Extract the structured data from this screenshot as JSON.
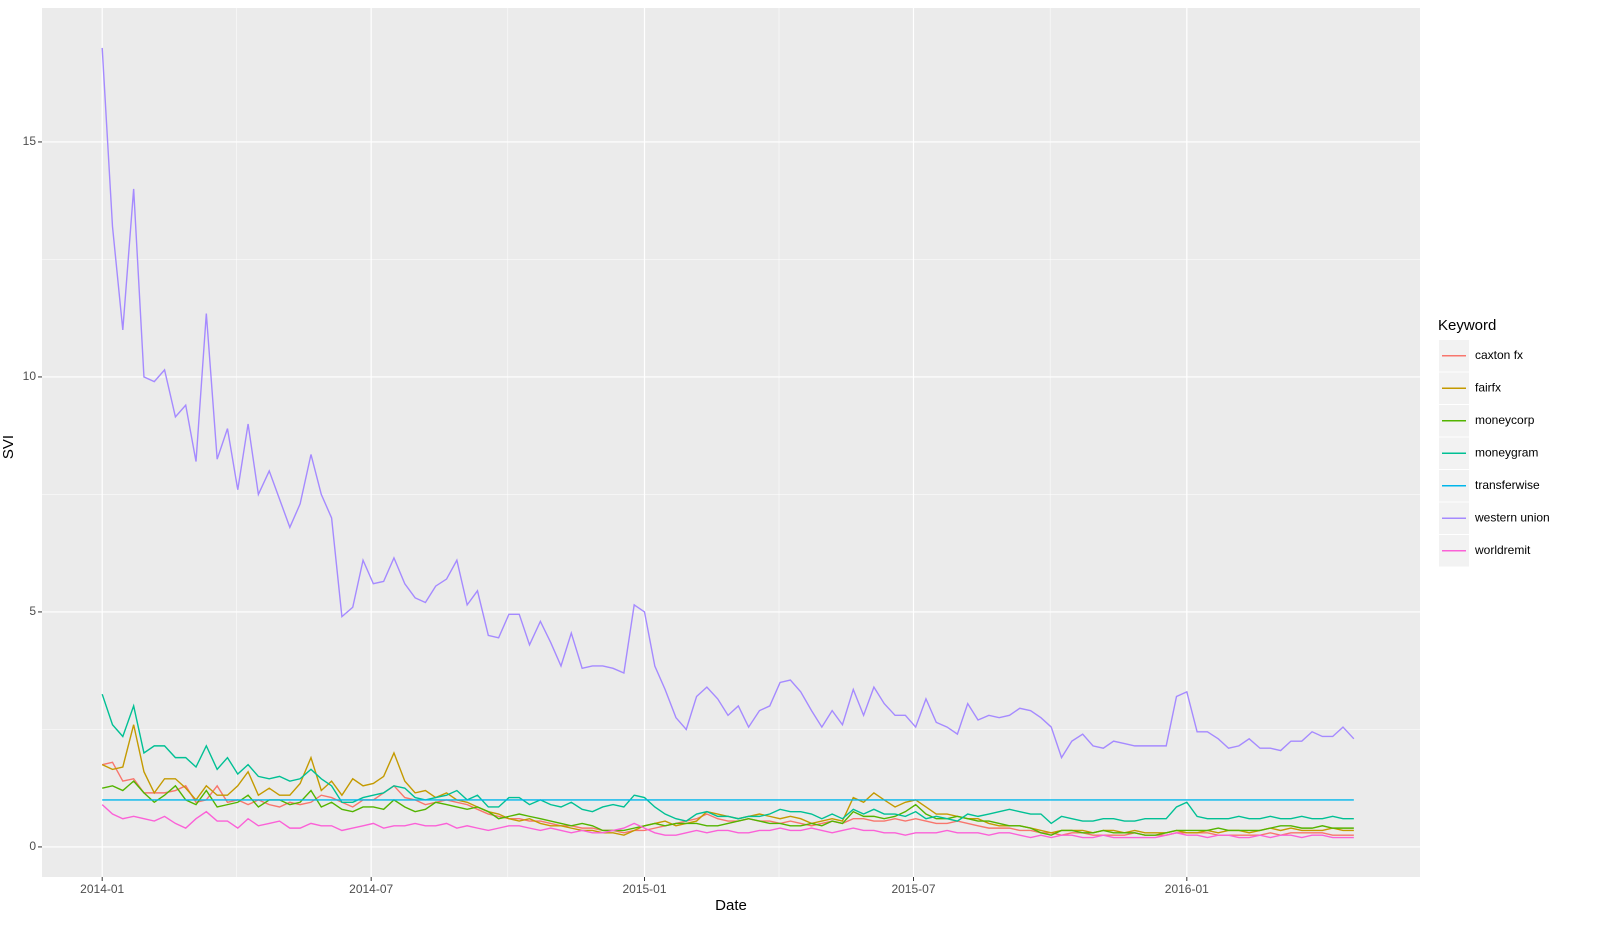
{
  "chart_data": {
    "type": "line",
    "x_label": "Date",
    "y_label": "SVI",
    "legend_title": "Keyword",
    "legend": "right",
    "grid": true,
    "xlim": [
      2013.889,
      2016.43
    ],
    "ylim": [
      -0.64,
      17.85
    ],
    "xticks": [
      {
        "value": 2014.0,
        "label": "2014-01"
      },
      {
        "value": 2014.496,
        "label": "2014-07"
      },
      {
        "value": 2015.0,
        "label": "2015-01"
      },
      {
        "value": 2015.496,
        "label": "2015-07"
      },
      {
        "value": 2016.0,
        "label": "2016-01"
      }
    ],
    "yticks": [
      0,
      5,
      10,
      15
    ],
    "x": [
      2014.0,
      2014.019,
      2014.038,
      2014.058,
      2014.077,
      2014.096,
      2014.115,
      2014.135,
      2014.154,
      2014.173,
      2014.192,
      2014.212,
      2014.231,
      2014.25,
      2014.269,
      2014.288,
      2014.308,
      2014.327,
      2014.346,
      2014.365,
      2014.385,
      2014.404,
      2014.423,
      2014.442,
      2014.462,
      2014.481,
      2014.5,
      2014.519,
      2014.538,
      2014.558,
      2014.577,
      2014.596,
      2014.615,
      2014.635,
      2014.654,
      2014.673,
      2014.692,
      2014.712,
      2014.731,
      2014.75,
      2014.769,
      2014.788,
      2014.808,
      2014.827,
      2014.846,
      2014.865,
      2014.885,
      2014.904,
      2014.923,
      2014.942,
      2014.962,
      2014.981,
      2015.0,
      2015.019,
      2015.038,
      2015.058,
      2015.077,
      2015.096,
      2015.115,
      2015.135,
      2015.154,
      2015.173,
      2015.192,
      2015.212,
      2015.231,
      2015.25,
      2015.269,
      2015.288,
      2015.308,
      2015.327,
      2015.346,
      2015.365,
      2015.385,
      2015.404,
      2015.423,
      2015.442,
      2015.462,
      2015.481,
      2015.5,
      2015.519,
      2015.538,
      2015.558,
      2015.577,
      2015.596,
      2015.615,
      2015.635,
      2015.654,
      2015.673,
      2015.692,
      2015.712,
      2015.731,
      2015.75,
      2015.769,
      2015.788,
      2015.808,
      2015.827,
      2015.846,
      2015.865,
      2015.885,
      2015.904,
      2015.923,
      2015.942,
      2015.962,
      2015.981,
      2016.0,
      2016.019,
      2016.038,
      2016.058,
      2016.077,
      2016.096,
      2016.115,
      2016.135,
      2016.154,
      2016.173,
      2016.192,
      2016.212,
      2016.231,
      2016.25,
      2016.269,
      2016.288,
      2016.308
    ],
    "series": [
      {
        "name": "caxton fx",
        "color": "#F8766D",
        "values": [
          1.75,
          1.8,
          1.4,
          1.45,
          1.15,
          1.15,
          1.15,
          1.2,
          1.3,
          0.95,
          1.0,
          1.3,
          0.95,
          1.0,
          0.9,
          1.0,
          0.9,
          0.85,
          0.95,
          0.9,
          0.95,
          1.1,
          1.05,
          0.95,
          0.85,
          1.0,
          1.0,
          1.15,
          1.3,
          1.05,
          1.0,
          0.9,
          0.95,
          1.0,
          0.95,
          0.9,
          0.8,
          0.7,
          0.65,
          0.6,
          0.6,
          0.55,
          0.55,
          0.5,
          0.45,
          0.45,
          0.4,
          0.4,
          0.35,
          0.35,
          0.3,
          0.35,
          0.35,
          0.4,
          0.45,
          0.5,
          0.55,
          0.6,
          0.7,
          0.6,
          0.55,
          0.55,
          0.6,
          0.55,
          0.55,
          0.5,
          0.55,
          0.5,
          0.45,
          0.5,
          0.55,
          0.5,
          0.6,
          0.6,
          0.55,
          0.55,
          0.6,
          0.55,
          0.6,
          0.55,
          0.5,
          0.5,
          0.55,
          0.5,
          0.45,
          0.4,
          0.4,
          0.4,
          0.35,
          0.35,
          0.3,
          0.3,
          0.25,
          0.3,
          0.3,
          0.25,
          0.25,
          0.25,
          0.25,
          0.3,
          0.25,
          0.25,
          0.25,
          0.3,
          0.3,
          0.3,
          0.3,
          0.25,
          0.25,
          0.25,
          0.25,
          0.25,
          0.3,
          0.25,
          0.3,
          0.3,
          0.3,
          0.3,
          0.25,
          0.25,
          0.25
        ]
      },
      {
        "name": "fairfx",
        "color": "#C49A00",
        "values": [
          1.75,
          1.65,
          1.7,
          2.6,
          1.6,
          1.15,
          1.45,
          1.45,
          1.25,
          1.0,
          1.3,
          1.1,
          1.1,
          1.3,
          1.6,
          1.1,
          1.25,
          1.1,
          1.1,
          1.35,
          1.9,
          1.2,
          1.4,
          1.1,
          1.45,
          1.3,
          1.35,
          1.5,
          2.0,
          1.4,
          1.15,
          1.2,
          1.05,
          1.15,
          1.0,
          0.95,
          0.85,
          0.75,
          0.7,
          0.6,
          0.55,
          0.6,
          0.5,
          0.45,
          0.45,
          0.4,
          0.35,
          0.35,
          0.3,
          0.3,
          0.25,
          0.35,
          0.45,
          0.5,
          0.55,
          0.45,
          0.5,
          0.55,
          0.75,
          0.7,
          0.65,
          0.6,
          0.65,
          0.7,
          0.65,
          0.6,
          0.65,
          0.6,
          0.5,
          0.55,
          0.6,
          0.55,
          1.05,
          0.95,
          1.15,
          1.0,
          0.85,
          0.95,
          1.0,
          0.85,
          0.7,
          0.7,
          0.65,
          0.6,
          0.6,
          0.5,
          0.45,
          0.45,
          0.45,
          0.4,
          0.35,
          0.3,
          0.35,
          0.35,
          0.35,
          0.3,
          0.35,
          0.35,
          0.3,
          0.35,
          0.3,
          0.3,
          0.3,
          0.35,
          0.3,
          0.3,
          0.35,
          0.3,
          0.35,
          0.35,
          0.3,
          0.35,
          0.4,
          0.35,
          0.4,
          0.35,
          0.35,
          0.35,
          0.4,
          0.35,
          0.35
        ]
      },
      {
        "name": "moneycorp",
        "color": "#53B400",
        "values": [
          1.25,
          1.3,
          1.2,
          1.4,
          1.15,
          0.95,
          1.1,
          1.3,
          1.0,
          0.9,
          1.2,
          0.85,
          0.9,
          0.95,
          1.1,
          0.85,
          1.0,
          1.0,
          0.9,
          0.95,
          1.2,
          0.85,
          0.95,
          0.8,
          0.75,
          0.85,
          0.85,
          0.8,
          1.0,
          0.85,
          0.75,
          0.8,
          0.95,
          0.9,
          0.85,
          0.8,
          0.85,
          0.75,
          0.6,
          0.65,
          0.7,
          0.65,
          0.6,
          0.55,
          0.5,
          0.45,
          0.5,
          0.45,
          0.35,
          0.35,
          0.35,
          0.4,
          0.45,
          0.5,
          0.45,
          0.5,
          0.5,
          0.5,
          0.45,
          0.45,
          0.5,
          0.55,
          0.6,
          0.55,
          0.5,
          0.5,
          0.45,
          0.45,
          0.5,
          0.45,
          0.55,
          0.5,
          0.75,
          0.65,
          0.65,
          0.6,
          0.65,
          0.75,
          0.9,
          0.7,
          0.6,
          0.6,
          0.65,
          0.6,
          0.55,
          0.55,
          0.5,
          0.45,
          0.45,
          0.4,
          0.3,
          0.25,
          0.35,
          0.35,
          0.3,
          0.3,
          0.35,
          0.3,
          0.3,
          0.3,
          0.25,
          0.25,
          0.3,
          0.35,
          0.35,
          0.35,
          0.35,
          0.4,
          0.35,
          0.35,
          0.35,
          0.35,
          0.4,
          0.45,
          0.45,
          0.4,
          0.4,
          0.45,
          0.4,
          0.4,
          0.4
        ]
      },
      {
        "name": "moneygram",
        "color": "#00C094",
        "values": [
          3.25,
          2.6,
          2.35,
          3.0,
          2.0,
          2.15,
          2.15,
          1.9,
          1.9,
          1.7,
          2.15,
          1.65,
          1.9,
          1.55,
          1.75,
          1.5,
          1.45,
          1.5,
          1.4,
          1.45,
          1.65,
          1.45,
          1.3,
          0.95,
          0.95,
          1.05,
          1.1,
          1.15,
          1.3,
          1.25,
          1.05,
          1.0,
          1.05,
          1.1,
          1.2,
          1.0,
          1.1,
          0.85,
          0.85,
          1.05,
          1.05,
          0.9,
          1.0,
          0.9,
          0.85,
          0.95,
          0.8,
          0.75,
          0.85,
          0.9,
          0.85,
          1.1,
          1.05,
          0.85,
          0.7,
          0.6,
          0.55,
          0.7,
          0.75,
          0.65,
          0.65,
          0.6,
          0.65,
          0.65,
          0.7,
          0.8,
          0.75,
          0.75,
          0.7,
          0.6,
          0.7,
          0.6,
          0.8,
          0.7,
          0.8,
          0.7,
          0.7,
          0.65,
          0.75,
          0.6,
          0.65,
          0.6,
          0.55,
          0.7,
          0.65,
          0.7,
          0.75,
          0.8,
          0.75,
          0.7,
          0.7,
          0.5,
          0.65,
          0.6,
          0.55,
          0.55,
          0.6,
          0.6,
          0.55,
          0.55,
          0.6,
          0.6,
          0.6,
          0.85,
          0.95,
          0.65,
          0.6,
          0.6,
          0.6,
          0.65,
          0.6,
          0.6,
          0.65,
          0.6,
          0.6,
          0.65,
          0.6,
          0.6,
          0.65,
          0.6,
          0.6
        ]
      },
      {
        "name": "transferwise",
        "color": "#00B6EB",
        "values": [
          1,
          1,
          1,
          1,
          1,
          1,
          1,
          1,
          1,
          1,
          1,
          1,
          1,
          1,
          1,
          1,
          1,
          1,
          1,
          1,
          1,
          1,
          1,
          1,
          1,
          1,
          1,
          1,
          1,
          1,
          1,
          1,
          1,
          1,
          1,
          1,
          1,
          1,
          1,
          1,
          1,
          1,
          1,
          1,
          1,
          1,
          1,
          1,
          1,
          1,
          1,
          1,
          1,
          1,
          1,
          1,
          1,
          1,
          1,
          1,
          1,
          1,
          1,
          1,
          1,
          1,
          1,
          1,
          1,
          1,
          1,
          1,
          1,
          1,
          1,
          1,
          1,
          1,
          1,
          1,
          1,
          1,
          1,
          1,
          1,
          1,
          1,
          1,
          1,
          1,
          1,
          1,
          1,
          1,
          1,
          1,
          1,
          1,
          1,
          1,
          1,
          1,
          1,
          1,
          1,
          1,
          1,
          1,
          1,
          1,
          1,
          1,
          1,
          1,
          1,
          1,
          1,
          1,
          1,
          1,
          1
        ]
      },
      {
        "name": "western union",
        "color": "#A58AFF",
        "values": [
          17.0,
          13.2,
          11.0,
          14.0,
          10.0,
          9.9,
          10.15,
          9.15,
          9.4,
          8.2,
          11.35,
          8.25,
          8.9,
          7.6,
          9.0,
          7.5,
          8.0,
          7.4,
          6.8,
          7.3,
          8.35,
          7.5,
          7.0,
          4.9,
          5.1,
          6.1,
          5.6,
          5.65,
          6.15,
          5.6,
          5.3,
          5.2,
          5.55,
          5.7,
          6.1,
          5.15,
          5.45,
          4.5,
          4.45,
          4.95,
          4.95,
          4.3,
          4.8,
          4.35,
          3.85,
          4.55,
          3.8,
          3.85,
          3.85,
          3.8,
          3.7,
          5.15,
          5.0,
          3.85,
          3.35,
          2.75,
          2.5,
          3.2,
          3.4,
          3.15,
          2.8,
          3.0,
          2.55,
          2.9,
          3.0,
          3.5,
          3.55,
          3.3,
          2.9,
          2.55,
          2.9,
          2.6,
          3.35,
          2.8,
          3.4,
          3.05,
          2.8,
          2.8,
          2.55,
          3.15,
          2.65,
          2.55,
          2.4,
          3.05,
          2.7,
          2.8,
          2.75,
          2.8,
          2.95,
          2.9,
          2.75,
          2.55,
          1.9,
          2.25,
          2.4,
          2.15,
          2.1,
          2.25,
          2.2,
          2.15,
          2.15,
          2.15,
          2.15,
          3.2,
          3.3,
          2.45,
          2.45,
          2.3,
          2.1,
          2.15,
          2.3,
          2.1,
          2.1,
          2.05,
          2.25,
          2.25,
          2.45,
          2.35,
          2.35,
          2.55,
          2.3
        ]
      },
      {
        "name": "worldremit",
        "color": "#FB61D7",
        "values": [
          0.9,
          0.7,
          0.6,
          0.65,
          0.6,
          0.55,
          0.65,
          0.5,
          0.4,
          0.6,
          0.75,
          0.55,
          0.55,
          0.4,
          0.6,
          0.45,
          0.5,
          0.55,
          0.4,
          0.4,
          0.5,
          0.45,
          0.45,
          0.35,
          0.4,
          0.45,
          0.5,
          0.4,
          0.45,
          0.45,
          0.5,
          0.45,
          0.45,
          0.5,
          0.4,
          0.45,
          0.4,
          0.35,
          0.4,
          0.45,
          0.45,
          0.4,
          0.35,
          0.4,
          0.35,
          0.3,
          0.35,
          0.3,
          0.3,
          0.35,
          0.4,
          0.5,
          0.4,
          0.3,
          0.25,
          0.25,
          0.3,
          0.35,
          0.3,
          0.35,
          0.35,
          0.3,
          0.3,
          0.35,
          0.35,
          0.4,
          0.35,
          0.35,
          0.4,
          0.35,
          0.3,
          0.35,
          0.4,
          0.35,
          0.35,
          0.3,
          0.3,
          0.25,
          0.3,
          0.3,
          0.3,
          0.35,
          0.3,
          0.3,
          0.3,
          0.25,
          0.3,
          0.3,
          0.25,
          0.2,
          0.25,
          0.2,
          0.25,
          0.25,
          0.2,
          0.2,
          0.25,
          0.2,
          0.2,
          0.2,
          0.2,
          0.2,
          0.25,
          0.3,
          0.25,
          0.25,
          0.2,
          0.25,
          0.25,
          0.2,
          0.2,
          0.25,
          0.2,
          0.25,
          0.25,
          0.2,
          0.25,
          0.25,
          0.2,
          0.2,
          0.2
        ]
      }
    ]
  }
}
